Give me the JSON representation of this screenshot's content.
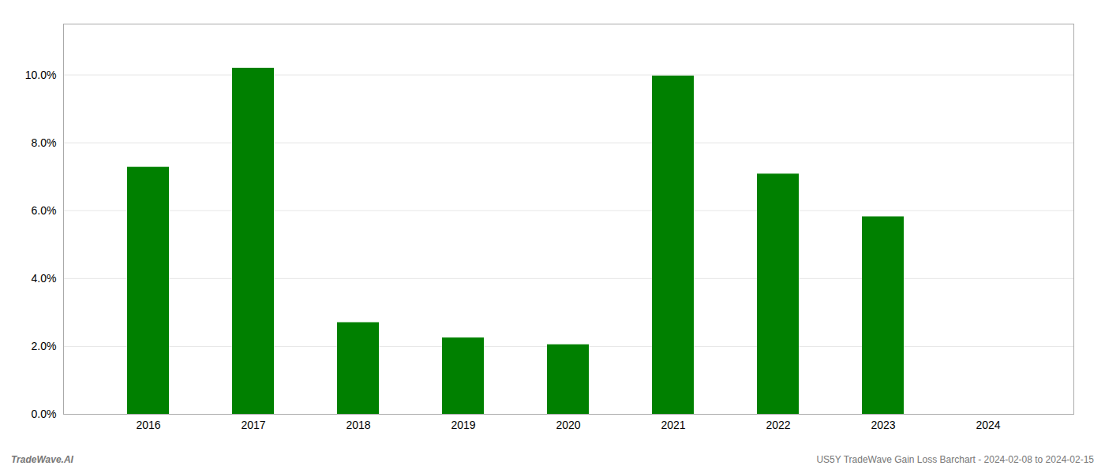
{
  "chart_data": {
    "type": "bar",
    "categories": [
      "2016",
      "2017",
      "2018",
      "2019",
      "2020",
      "2021",
      "2022",
      "2023",
      "2024"
    ],
    "values": [
      7.28,
      10.2,
      2.7,
      2.25,
      2.05,
      9.97,
      7.08,
      5.82,
      0.0
    ],
    "color": "#008000",
    "ylim": [
      0,
      11.5
    ],
    "yticks": [
      {
        "value": 0.0,
        "label": "0.0%"
      },
      {
        "value": 2.0,
        "label": "2.0%"
      },
      {
        "value": 4.0,
        "label": "4.0%"
      },
      {
        "value": 6.0,
        "label": "6.0%"
      },
      {
        "value": 8.0,
        "label": "8.0%"
      },
      {
        "value": 10.0,
        "label": "10.0%"
      }
    ],
    "grid": true,
    "annotations": [
      "TradeWave.AI",
      "US5Y TradeWave Gain Loss Barchart - 2024-02-08 to 2024-02-15"
    ]
  }
}
